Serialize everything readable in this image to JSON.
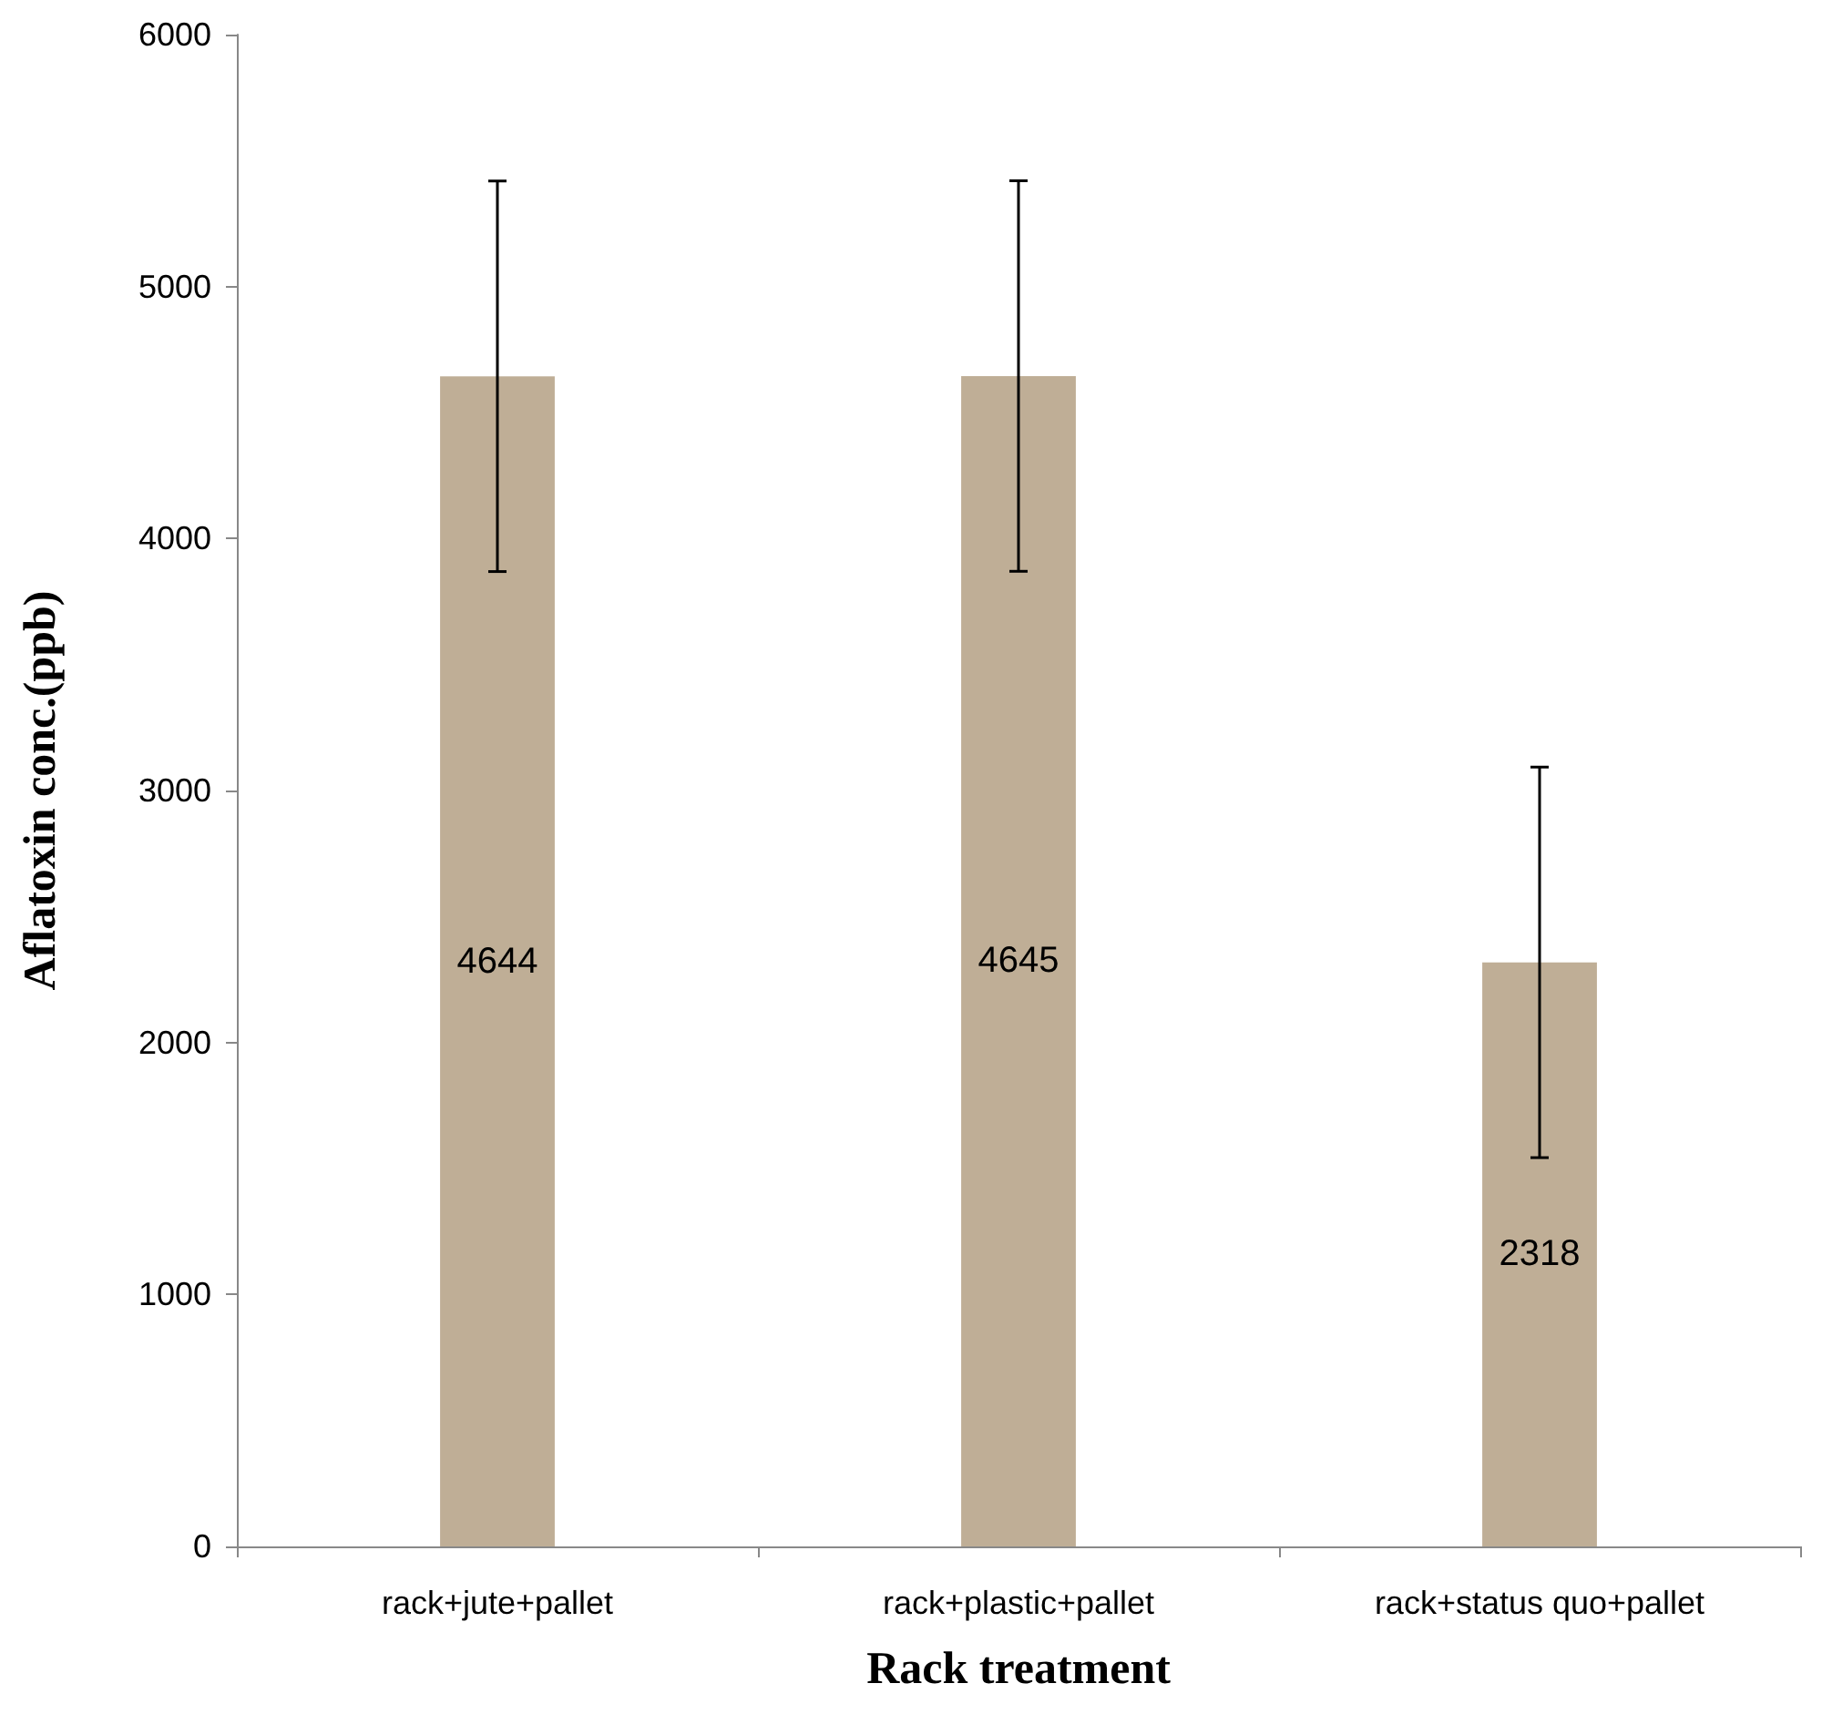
{
  "chart_data": {
    "type": "bar",
    "xlabel": "Rack treatment",
    "ylabel": "Aflatoxin conc.(ppb)",
    "categories": [
      "rack+jute+pallet",
      "rack+plastic+pallet",
      "rack+status quo+pallet"
    ],
    "values": [
      4644,
      4645,
      2318
    ],
    "color": "#bfae96",
    "errors": [
      775,
      775,
      775
    ],
    "ylim": [
      0,
      6000
    ],
    "yticks": [
      0,
      1000,
      2000,
      3000,
      4000,
      5000,
      6000
    ],
    "data_labels": true,
    "grid": false
  }
}
